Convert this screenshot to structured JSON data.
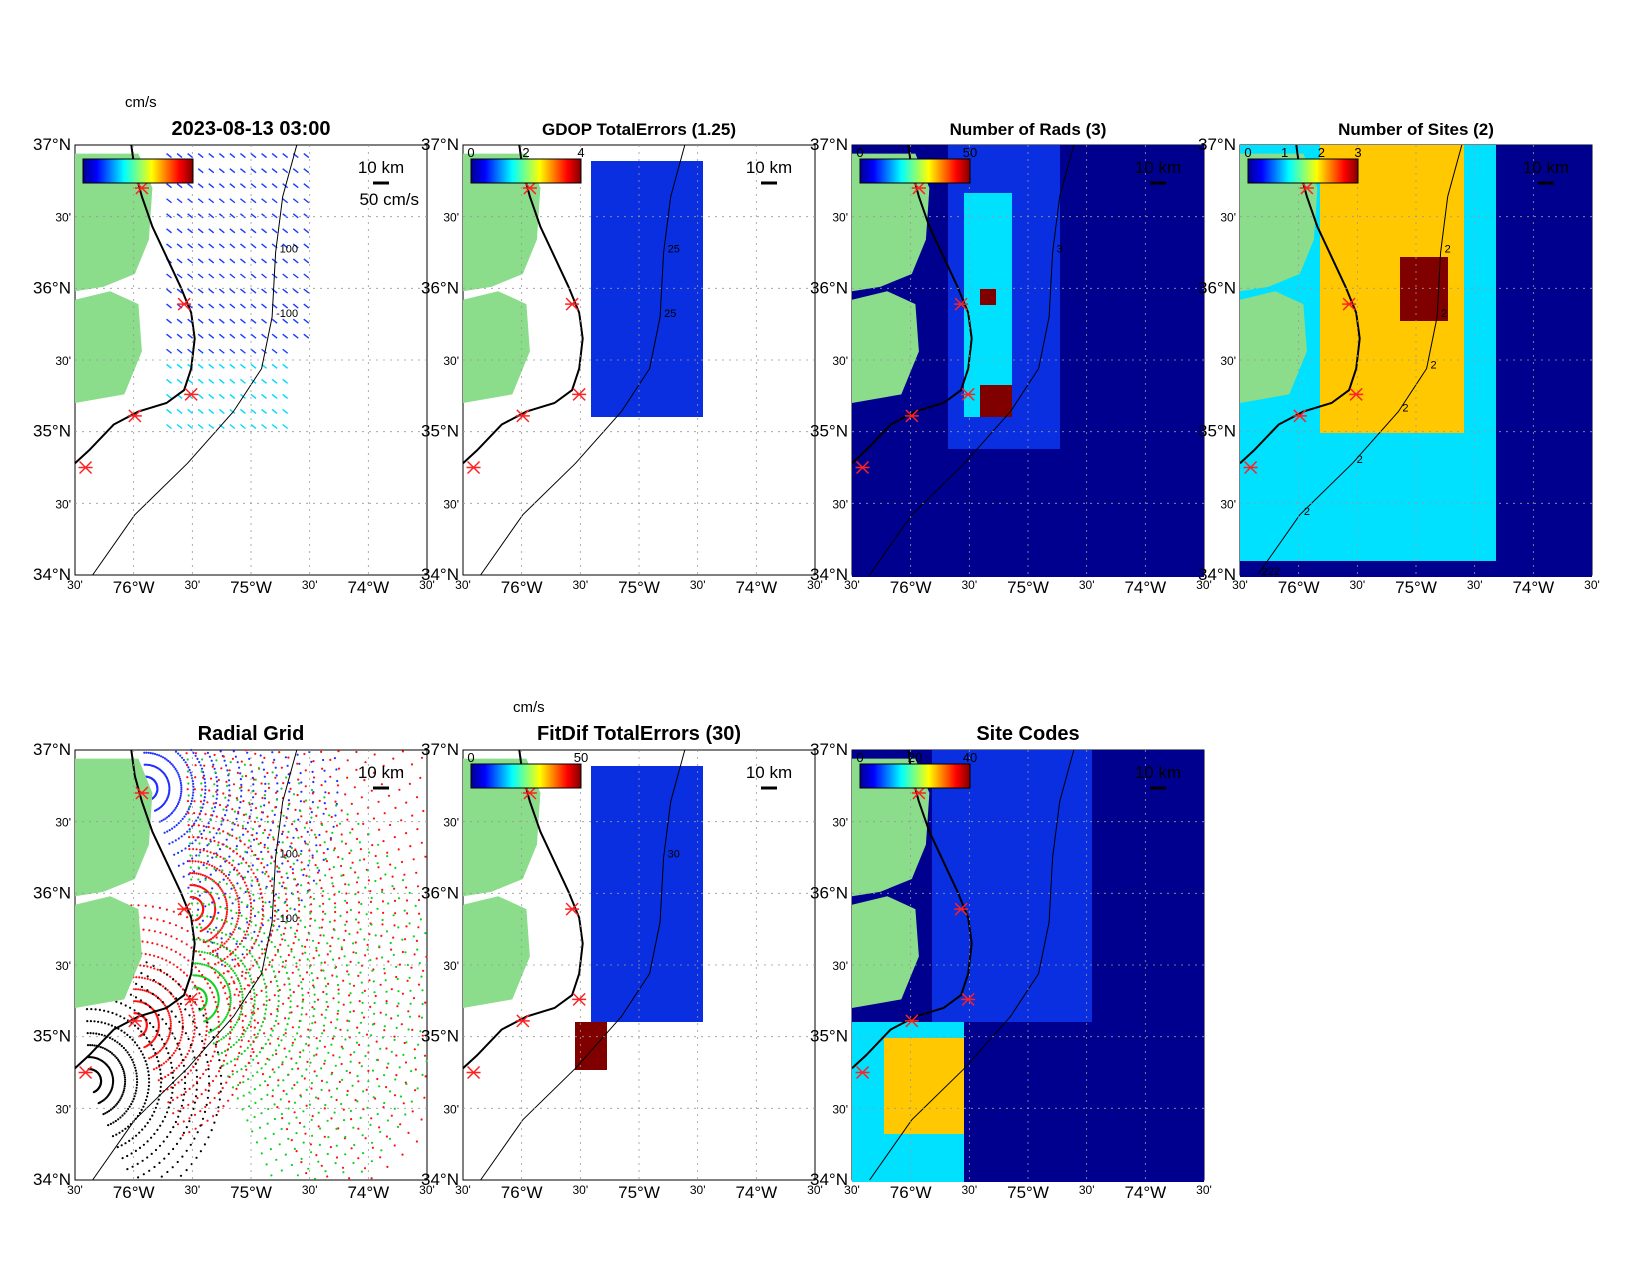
{
  "figure": {
    "timestamp": "2023-08-13 03:00"
  },
  "axes": {
    "lat_labels": [
      "37°N",
      "30'",
      "36°N",
      "30'",
      "35°N",
      "30'",
      "34°N"
    ],
    "lon_labels": [
      "30'",
      "76°W",
      "30'",
      "75°W",
      "30'",
      "74°W",
      "30'"
    ],
    "scale_bar_label": "10 km",
    "grid": "dotted"
  },
  "colors": {
    "land": "#8bdc8b",
    "coast": "#000000",
    "site_marker": "#ff2020",
    "colormap": "jet",
    "bg_deep_blue": "#00008f",
    "blue": "#0a2fe0",
    "cyan": "#00e0ff",
    "yellow": "#ffc800",
    "darkred": "#800000"
  },
  "panels": [
    {
      "id": "total-vectors",
      "title": "2023-08-13 03:00",
      "colorbar_unit": "cm/s",
      "colorbar_ticks": [],
      "reference_arrow_label": "50 cm/s",
      "scale_label": "10 km",
      "contour_labels": [
        "100",
        "-100"
      ]
    },
    {
      "id": "gdop-total-errors",
      "title": "GDOP TotalErrors (1.25)",
      "colorbar_unit": "",
      "colorbar_ticks": [
        "0",
        "2",
        "4"
      ],
      "scale_label": "10 km",
      "contour_labels": [
        "25",
        "25"
      ]
    },
    {
      "id": "number-of-rads",
      "title": "Number of Rads (3)",
      "colorbar_unit": "",
      "colorbar_ticks": [
        "0",
        "50"
      ],
      "scale_label": "10 km",
      "contour_labels": [
        "3"
      ]
    },
    {
      "id": "number-of-sites",
      "title": "Number of Sites (2)",
      "colorbar_unit": "",
      "colorbar_ticks": [
        "0",
        "1",
        "2",
        "3"
      ],
      "scale_label": "10 km",
      "contour_labels": [
        "2",
        "2",
        "2",
        "2",
        "2",
        "2",
        "222",
        "2",
        "2"
      ]
    },
    {
      "id": "radial-grid",
      "title": "Radial Grid",
      "colorbar_unit": "",
      "colorbar_ticks": [],
      "scale_label": "10 km",
      "contour_labels": [
        "100",
        "-100"
      ]
    },
    {
      "id": "fitdif-total-errors",
      "title": "FitDif TotalErrors (30)",
      "colorbar_unit": "cm/s",
      "colorbar_ticks": [
        "0",
        "50"
      ],
      "scale_label": "10 km",
      "contour_labels": [
        "30"
      ]
    },
    {
      "id": "site-codes",
      "title": "Site Codes",
      "colorbar_unit": "",
      "colorbar_ticks": [
        "0",
        "20",
        "40"
      ],
      "scale_label": "10 km",
      "contour_labels": []
    }
  ]
}
